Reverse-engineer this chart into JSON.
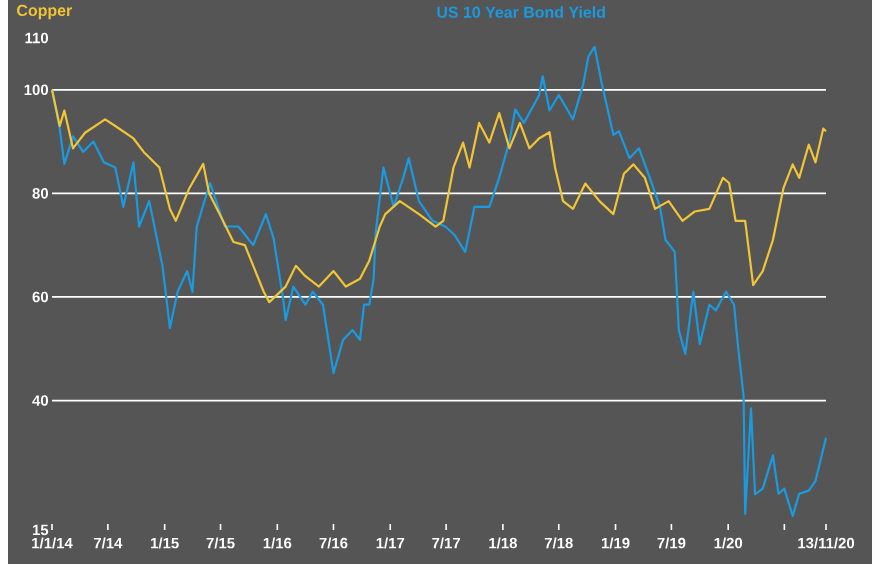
{
  "chart_data": {
    "type": "line",
    "xlim": [
      "2014-01-01",
      "2020-11-13"
    ],
    "xticks": [
      {
        "value": "2014-01-01",
        "label": "1/1/14"
      },
      {
        "value": "2014-07-01",
        "label": "7/14"
      },
      {
        "value": "2015-01-01",
        "label": "1/15"
      },
      {
        "value": "2015-07-01",
        "label": "7/15"
      },
      {
        "value": "2016-01-01",
        "label": "1/16"
      },
      {
        "value": "2016-07-01",
        "label": "7/16"
      },
      {
        "value": "2017-01-01",
        "label": "1/17"
      },
      {
        "value": "2017-07-01",
        "label": "7/17"
      },
      {
        "value": "2018-01-01",
        "label": "1/18"
      },
      {
        "value": "2018-07-01",
        "label": "7/18"
      },
      {
        "value": "2019-01-01",
        "label": "1/19"
      },
      {
        "value": "2019-07-01",
        "label": "7/19"
      },
      {
        "value": "2020-01-01",
        "label": "1/20"
      },
      {
        "value": "2020-07-01",
        "label": null
      },
      {
        "value": "2020-11-13",
        "label": "13/11/20"
      }
    ],
    "ylim": [
      15,
      110
    ],
    "yticks": [
      15,
      40,
      60,
      80,
      100,
      110
    ],
    "grid": "y",
    "series": [
      {
        "name": "Copper",
        "color": "#f2c536",
        "x": [
          "2014-01-01",
          "2014-01-26",
          "2014-02-10",
          "2014-03-10",
          "2014-04-18",
          "2014-06-22",
          "2014-07-25",
          "2014-09-22",
          "2014-10-25",
          "2014-12-15",
          "2015-01-18",
          "2015-02-06",
          "2015-03-22",
          "2015-05-06",
          "2015-05-25",
          "2015-06-28",
          "2015-08-12",
          "2015-09-18",
          "2015-11-18",
          "2015-12-06",
          "2016-01-28",
          "2016-03-01",
          "2016-04-01",
          "2016-05-15",
          "2016-07-01",
          "2016-08-10",
          "2016-09-25",
          "2016-10-25",
          "2016-11-28",
          "2016-12-16",
          "2017-02-01",
          "2017-04-04",
          "2017-05-28",
          "2017-06-22",
          "2017-07-25",
          "2017-08-25",
          "2017-09-15",
          "2017-10-16",
          "2017-11-18",
          "2017-12-20",
          "2018-01-22",
          "2018-02-25",
          "2018-03-28",
          "2018-04-28",
          "2018-06-01",
          "2018-06-19",
          "2018-07-15",
          "2018-08-16",
          "2018-09-25",
          "2018-11-10",
          "2018-12-25",
          "2019-01-28",
          "2019-02-28",
          "2019-04-06",
          "2019-05-09",
          "2019-06-22",
          "2019-08-06",
          "2019-09-15",
          "2019-11-01",
          "2019-12-15",
          "2020-01-04",
          "2020-01-25",
          "2020-02-25",
          "2020-03-22",
          "2020-04-22",
          "2020-05-25",
          "2020-06-28",
          "2020-07-28",
          "2020-08-18",
          "2020-09-18",
          "2020-10-10",
          "2020-11-04",
          "2020-11-13"
        ],
        "values": [
          100,
          93,
          96,
          88.7,
          91.7,
          94.3,
          93,
          90.6,
          88,
          85,
          77,
          74.7,
          81,
          85.7,
          80,
          76,
          70.6,
          70,
          61,
          59,
          62,
          66,
          64,
          62,
          65,
          62,
          63.5,
          67,
          73.6,
          76,
          78.5,
          76,
          73.6,
          74.7,
          85,
          89.8,
          85,
          93.6,
          89.8,
          95.5,
          88.7,
          93.6,
          88.7,
          90.6,
          91.8,
          85,
          78.5,
          77,
          81.9,
          78.5,
          76,
          83.8,
          85.6,
          83,
          77,
          78.5,
          74.7,
          76.5,
          77,
          83,
          82,
          74.7,
          74.7,
          62.3,
          65,
          71,
          81,
          85.6,
          83,
          89.4,
          86,
          92.5,
          92
        ]
      },
      {
        "name": "US 10 Year Bond Yield",
        "color": "#1a9ae0",
        "x": [
          "2014-01-01",
          "2014-01-26",
          "2014-02-10",
          "2014-03-10",
          "2014-04-12",
          "2014-05-15",
          "2014-06-18",
          "2014-07-25",
          "2014-08-20",
          "2014-09-22",
          "2014-10-10",
          "2014-11-12",
          "2014-12-25",
          "2015-01-18",
          "2015-02-12",
          "2015-03-15",
          "2015-04-01",
          "2015-04-15",
          "2015-05-28",
          "2015-07-15",
          "2015-08-28",
          "2015-10-15",
          "2015-11-25",
          "2015-12-20",
          "2016-01-20",
          "2016-01-28",
          "2016-02-22",
          "2016-04-01",
          "2016-04-25",
          "2016-05-28",
          "2016-07-01",
          "2016-08-01",
          "2016-09-01",
          "2016-09-25",
          "2016-10-08",
          "2016-10-25",
          "2016-11-08",
          "2016-11-15",
          "2016-12-10",
          "2017-01-12",
          "2017-02-12",
          "2017-03-02",
          "2017-04-04",
          "2017-05-18",
          "2017-06-28",
          "2017-07-28",
          "2017-09-01",
          "2017-10-01",
          "2017-11-18",
          "2017-12-20",
          "2018-01-22",
          "2018-02-10",
          "2018-03-10",
          "2018-04-28",
          "2018-05-10",
          "2018-06-01",
          "2018-07-01",
          "2018-08-16",
          "2018-09-18",
          "2018-10-05",
          "2018-10-25",
          "2018-11-18",
          "2018-12-25",
          "2019-01-12",
          "2019-02-15",
          "2019-03-18",
          "2019-04-22",
          "2019-05-25",
          "2019-06-12",
          "2019-07-12",
          "2019-07-25",
          "2019-08-15",
          "2019-09-10",
          "2019-10-01",
          "2019-11-01",
          "2019-11-22",
          "2019-12-25",
          "2020-01-20",
          "2020-02-01",
          "2020-02-20",
          "2020-02-25",
          "2020-03-15",
          "2020-03-28",
          "2020-04-22",
          "2020-05-25",
          "2020-06-12",
          "2020-07-01",
          "2020-07-28",
          "2020-08-18",
          "2020-09-18",
          "2020-10-10",
          "2020-11-13"
        ],
        "values": [
          100,
          92.5,
          85.7,
          91,
          88,
          90,
          86,
          85,
          77.4,
          86,
          73.6,
          78.5,
          66,
          54,
          61,
          65,
          61,
          73.6,
          82,
          73.6,
          73.6,
          70,
          76,
          71.3,
          59.6,
          55.5,
          62,
          58.5,
          61,
          58.5,
          45.3,
          51.7,
          53.6,
          51.7,
          58.5,
          58.5,
          63.4,
          72.5,
          85,
          77.4,
          83,
          86.8,
          78.5,
          74.7,
          73.6,
          72,
          68.7,
          77.4,
          77.4,
          83,
          90,
          96.2,
          93.6,
          98.9,
          102.6,
          96,
          99,
          94.3,
          101,
          106.4,
          108.3,
          101,
          91.3,
          92,
          86.8,
          88.7,
          83,
          77.4,
          71,
          68.7,
          53.6,
          49,
          61,
          50.9,
          58.5,
          57.4,
          61,
          58.5,
          51,
          40.8,
          18.1,
          38.5,
          21.9,
          23,
          29.4,
          22,
          23,
          17.7,
          22,
          22.6,
          24.5,
          32.8
        ]
      }
    ]
  }
}
